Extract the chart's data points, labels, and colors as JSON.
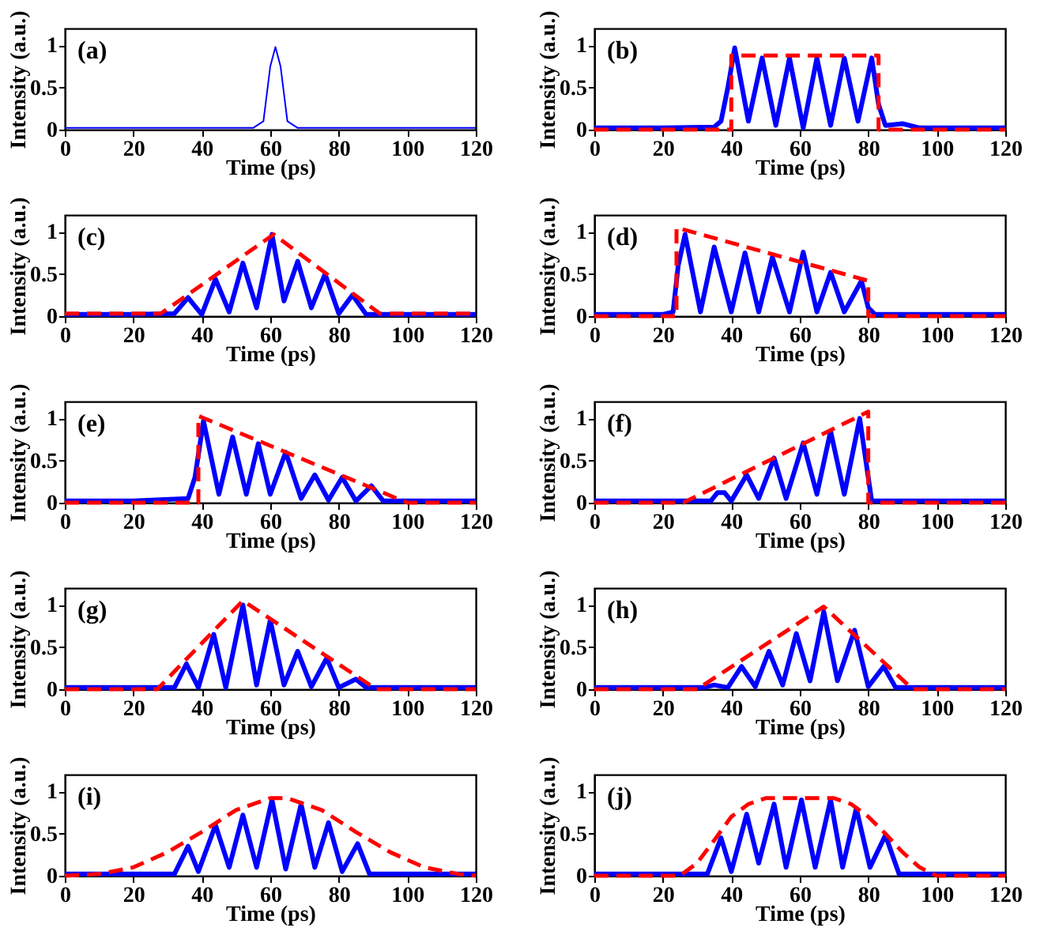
{
  "chart_data": [
    {
      "type": "line",
      "annotations": [
        "(a)"
      ],
      "xlabel": "Time (ps)",
      "ylabel": "Intensity (a.u.)",
      "xlim": [
        0,
        120
      ],
      "xticks": [
        0,
        20,
        40,
        60,
        80,
        100,
        120
      ],
      "ylim": [
        0,
        1.2
      ],
      "yticks": [
        0,
        0.5,
        1
      ],
      "grid": false,
      "series": [
        {
          "color": "#0000ff",
          "line_style": "solid",
          "x": [
            0,
            20,
            40,
            55,
            58,
            60,
            61.5,
            63,
            65,
            68,
            90,
            120
          ],
          "values": [
            0.02,
            0.02,
            0.02,
            0.02,
            0.1,
            0.75,
            0.98,
            0.75,
            0.1,
            0.02,
            0.02,
            0.02
          ]
        }
      ]
    },
    {
      "type": "line",
      "annotations": [
        "(b)"
      ],
      "xlabel": "Time (ps)",
      "ylabel": "Intensity (a.u.)",
      "xlim": [
        0,
        120
      ],
      "xticks": [
        0,
        20,
        40,
        60,
        80,
        100,
        120
      ],
      "ylim": [
        0,
        1.2
      ],
      "yticks": [
        0,
        0.5,
        1
      ],
      "grid": false,
      "series": [
        {
          "color": "#0000ff",
          "line_style": "solid",
          "x": [
            0,
            20,
            35,
            37,
            39,
            41,
            45,
            49,
            53,
            57,
            61,
            65,
            69,
            73,
            77,
            81,
            83,
            85,
            90,
            95,
            120
          ],
          "values": [
            0.02,
            0.02,
            0.03,
            0.1,
            0.5,
            0.97,
            0.1,
            0.85,
            0.05,
            0.85,
            0.02,
            0.85,
            0.05,
            0.85,
            0.1,
            0.85,
            0.3,
            0.05,
            0.07,
            0.02,
            0.02
          ]
        },
        {
          "color": "#ff0000",
          "line_style": "dashed",
          "x": [
            0,
            40,
            40,
            83,
            83,
            120
          ],
          "values": [
            0,
            0,
            0.88,
            0.88,
            0,
            0
          ]
        }
      ]
    },
    {
      "type": "line",
      "annotations": [
        "(c)"
      ],
      "xlabel": "Time (ps)",
      "ylabel": "Intensity (a.u.)",
      "xlim": [
        0,
        120
      ],
      "xticks": [
        0,
        20,
        40,
        60,
        80,
        100,
        120
      ],
      "ylim": [
        0,
        1.2
      ],
      "yticks": [
        0,
        0.5,
        1
      ],
      "grid": false,
      "series": [
        {
          "color": "#0000ff",
          "line_style": "solid",
          "x": [
            0,
            20,
            32,
            36,
            40,
            44,
            48,
            52,
            56,
            60.5,
            64,
            68,
            72,
            76,
            80,
            84,
            88,
            100,
            120
          ],
          "values": [
            0.02,
            0.02,
            0.03,
            0.22,
            0.02,
            0.44,
            0.05,
            0.63,
            0.1,
            0.97,
            0.18,
            0.65,
            0.1,
            0.5,
            0.03,
            0.25,
            0.02,
            0.02,
            0.02
          ]
        },
        {
          "color": "#ff0000",
          "line_style": "dashed",
          "x": [
            0,
            28,
            61,
            92,
            120
          ],
          "values": [
            0.03,
            0.03,
            0.97,
            0.03,
            0.03
          ]
        }
      ]
    },
    {
      "type": "line",
      "annotations": [
        "(d)"
      ],
      "xlabel": "Time (ps)",
      "ylabel": "Intensity (a.u.)",
      "xlim": [
        0,
        120
      ],
      "xticks": [
        0,
        20,
        40,
        60,
        80,
        100,
        120
      ],
      "ylim": [
        0,
        1.2
      ],
      "yticks": [
        0,
        0.5,
        1
      ],
      "grid": false,
      "series": [
        {
          "color": "#0000ff",
          "line_style": "solid",
          "x": [
            0,
            20,
            23,
            24.5,
            26.5,
            31,
            35,
            40,
            44,
            48,
            52,
            57,
            61,
            65,
            69,
            73,
            78,
            80,
            82,
            100,
            120
          ],
          "values": [
            0.02,
            0.02,
            0.05,
            0.6,
            0.97,
            0.05,
            0.82,
            0.05,
            0.75,
            0.05,
            0.7,
            0.05,
            0.76,
            0.05,
            0.52,
            0.05,
            0.42,
            0.1,
            0.02,
            0.02,
            0.02
          ]
        },
        {
          "color": "#ff0000",
          "line_style": "dashed",
          "x": [
            0,
            24,
            24,
            80,
            80,
            120
          ],
          "values": [
            0,
            0,
            1.05,
            0.42,
            0,
            0
          ]
        }
      ]
    },
    {
      "type": "line",
      "annotations": [
        "(e)"
      ],
      "xlabel": "Time (ps)",
      "ylabel": "Intensity (a.u.)",
      "xlim": [
        0,
        120
      ],
      "xticks": [
        0,
        20,
        40,
        60,
        80,
        100,
        120
      ],
      "ylim": [
        0,
        1.2
      ],
      "yticks": [
        0,
        0.5,
        1
      ],
      "grid": false,
      "series": [
        {
          "color": "#0000ff",
          "line_style": "solid",
          "x": [
            0,
            20,
            36,
            38,
            40.5,
            45,
            49,
            53,
            56.5,
            60,
            64.5,
            69,
            73,
            77,
            81,
            85,
            89.5,
            93,
            120
          ],
          "values": [
            0.02,
            0.02,
            0.05,
            0.3,
            0.97,
            0.1,
            0.78,
            0.1,
            0.7,
            0.1,
            0.6,
            0.05,
            0.33,
            0.03,
            0.3,
            0.02,
            0.2,
            0.02,
            0.02
          ]
        },
        {
          "color": "#ff0000",
          "line_style": "dashed",
          "x": [
            0,
            39,
            39,
            100,
            120
          ],
          "values": [
            0,
            0,
            1.03,
            0,
            0
          ]
        }
      ]
    },
    {
      "type": "line",
      "annotations": [
        "(f)"
      ],
      "xlabel": "Time (ps)",
      "ylabel": "Intensity (a.u.)",
      "xlim": [
        0,
        120
      ],
      "xticks": [
        0,
        20,
        40,
        60,
        80,
        100,
        120
      ],
      "ylim": [
        0,
        1.2
      ],
      "yticks": [
        0,
        0.5,
        1
      ],
      "grid": false,
      "series": [
        {
          "color": "#0000ff",
          "line_style": "solid",
          "x": [
            0,
            20,
            34,
            36,
            38,
            40,
            44.5,
            48,
            52.5,
            56,
            61,
            65,
            69,
            73,
            77.5,
            80,
            81,
            100,
            120
          ],
          "values": [
            0.02,
            0.02,
            0.02,
            0.12,
            0.12,
            0.02,
            0.33,
            0.05,
            0.53,
            0.05,
            0.71,
            0.1,
            0.85,
            0.1,
            1.0,
            0.3,
            0.02,
            0.02,
            0.02
          ]
        },
        {
          "color": "#ff0000",
          "line_style": "dashed",
          "x": [
            0,
            26,
            80,
            80,
            120
          ],
          "values": [
            0,
            0,
            1.08,
            0,
            0
          ]
        }
      ]
    },
    {
      "type": "line",
      "annotations": [
        "(g)"
      ],
      "xlabel": "Time (ps)",
      "ylabel": "Intensity (a.u.)",
      "xlim": [
        0,
        120
      ],
      "xticks": [
        0,
        20,
        40,
        60,
        80,
        100,
        120
      ],
      "ylim": [
        0,
        1.2
      ],
      "yticks": [
        0,
        0.5,
        1
      ],
      "grid": false,
      "series": [
        {
          "color": "#0000ff",
          "line_style": "solid",
          "x": [
            0,
            20,
            32,
            35.5,
            39,
            43.5,
            47,
            52,
            56,
            60,
            64,
            68,
            72,
            76.5,
            80,
            85,
            88,
            100,
            120
          ],
          "values": [
            0.02,
            0.02,
            0.02,
            0.3,
            0.02,
            0.65,
            0.02,
            1.0,
            0.05,
            0.82,
            0.05,
            0.45,
            0.03,
            0.37,
            0.02,
            0.12,
            0.02,
            0.02,
            0.02
          ]
        },
        {
          "color": "#ff0000",
          "line_style": "dashed",
          "x": [
            0,
            27,
            52,
            91,
            120
          ],
          "values": [
            0,
            0,
            1.05,
            0,
            0
          ]
        }
      ]
    },
    {
      "type": "line",
      "annotations": [
        "(h)"
      ],
      "xlabel": "Time (ps)",
      "ylabel": "Intensity (a.u.)",
      "xlim": [
        0,
        120
      ],
      "xticks": [
        0,
        20,
        40,
        60,
        80,
        100,
        120
      ],
      "ylim": [
        0,
        1.2
      ],
      "yticks": [
        0,
        0.5,
        1
      ],
      "grid": false,
      "series": [
        {
          "color": "#0000ff",
          "line_style": "solid",
          "x": [
            0,
            20,
            32,
            35,
            39,
            43,
            47,
            51,
            55,
            59,
            63,
            67,
            71,
            76,
            80,
            84.5,
            88,
            100,
            120
          ],
          "values": [
            0.02,
            0.02,
            0.02,
            0.05,
            0.02,
            0.27,
            0.03,
            0.45,
            0.05,
            0.66,
            0.1,
            0.92,
            0.1,
            0.7,
            0.03,
            0.27,
            0.02,
            0.02,
            0.02
          ]
        },
        {
          "color": "#ff0000",
          "line_style": "dashed",
          "x": [
            0,
            30,
            67,
            93,
            120
          ],
          "values": [
            0,
            0,
            0.98,
            0,
            0
          ]
        }
      ]
    },
    {
      "type": "line",
      "annotations": [
        "(i)"
      ],
      "xlabel": "Time (ps)",
      "ylabel": "Intensity (a.u.)",
      "xlim": [
        0,
        120
      ],
      "xticks": [
        0,
        20,
        40,
        60,
        80,
        100,
        120
      ],
      "ylim": [
        0,
        1.2
      ],
      "yticks": [
        0,
        0.5,
        1
      ],
      "grid": false,
      "series": [
        {
          "color": "#0000ff",
          "line_style": "solid",
          "x": [
            0,
            20,
            32,
            36,
            39,
            44,
            48,
            52,
            56,
            60.5,
            64.5,
            69,
            73,
            77,
            81,
            85.5,
            89,
            100,
            120
          ],
          "values": [
            0.02,
            0.02,
            0.02,
            0.35,
            0.05,
            0.6,
            0.1,
            0.72,
            0.1,
            0.9,
            0.08,
            0.85,
            0.1,
            0.63,
            0.05,
            0.38,
            0.02,
            0.02,
            0.02
          ]
        },
        {
          "color": "#ff0000",
          "line_style": "dashed",
          "x": [
            0,
            10,
            20,
            30,
            40,
            50,
            60,
            65,
            75,
            85,
            95,
            105,
            115,
            120
          ],
          "values": [
            0,
            0.02,
            0.1,
            0.28,
            0.52,
            0.78,
            0.92,
            0.92,
            0.78,
            0.52,
            0.28,
            0.1,
            0.02,
            0
          ]
        }
      ]
    },
    {
      "type": "line",
      "annotations": [
        "(j)"
      ],
      "xlabel": "Time (ps)",
      "ylabel": "Intensity (a.u.)",
      "xlim": [
        0,
        120
      ],
      "xticks": [
        0,
        20,
        40,
        60,
        80,
        100,
        120
      ],
      "ylim": [
        0,
        1.2
      ],
      "yticks": [
        0,
        0.5,
        1
      ],
      "grid": false,
      "series": [
        {
          "color": "#0000ff",
          "line_style": "solid",
          "x": [
            0,
            20,
            33,
            37,
            40,
            44.5,
            48,
            52.5,
            56,
            60.5,
            64.5,
            69,
            72.5,
            76.5,
            80.5,
            85,
            89,
            100,
            120
          ],
          "values": [
            0.02,
            0.02,
            0.02,
            0.45,
            0.05,
            0.73,
            0.15,
            0.85,
            0.1,
            0.9,
            0.1,
            0.9,
            0.1,
            0.8,
            0.1,
            0.48,
            0.02,
            0.02,
            0.02
          ]
        },
        {
          "color": "#ff0000",
          "line_style": "dashed",
          "x": [
            0,
            25,
            30,
            35,
            40,
            45,
            50,
            70,
            75,
            80,
            85,
            90,
            95,
            100,
            120
          ],
          "values": [
            0,
            0,
            0.15,
            0.42,
            0.7,
            0.85,
            0.92,
            0.92,
            0.85,
            0.7,
            0.5,
            0.28,
            0.1,
            0,
            0
          ]
        }
      ]
    }
  ]
}
